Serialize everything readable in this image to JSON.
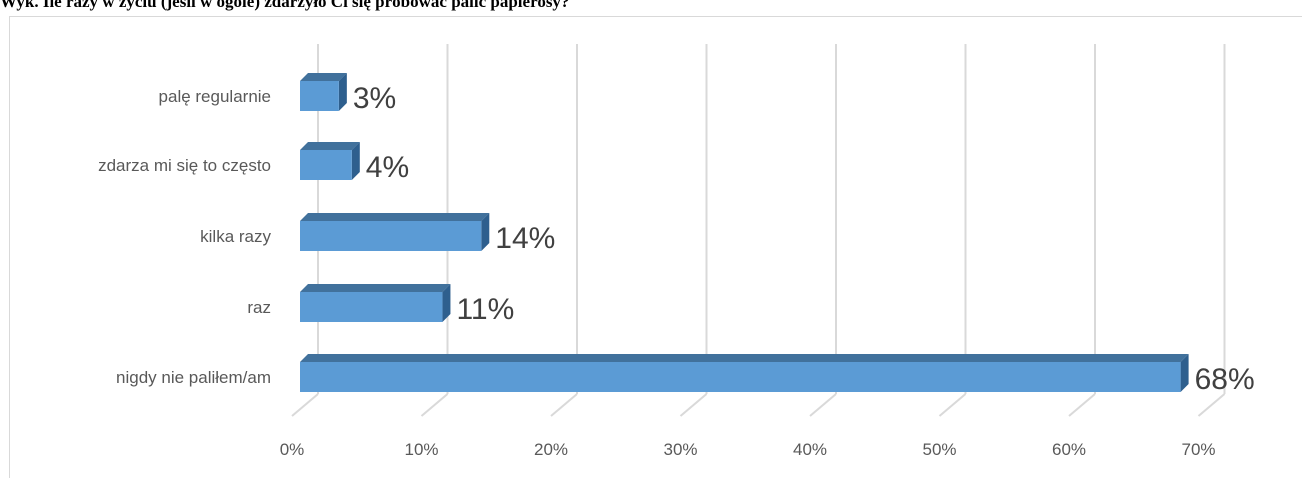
{
  "header": {
    "title": "Wyk. Ile razy w życiu (jeśli w ogóle) zdarzyło Ci się próbować palić papierosy?"
  },
  "chart_data": {
    "type": "bar",
    "orientation": "horizontal",
    "style": "3d-clustered",
    "title": "Wyk. Ile razy w życiu (jeśli w ogóle) zdarzyło Ci się próbować palić papierosy?",
    "categories": [
      "palę regularnie",
      "zdarza mi się to często",
      "kilka razy",
      "raz",
      "nigdy nie paliłem/am"
    ],
    "values": [
      3,
      4,
      14,
      11,
      68
    ],
    "value_labels": [
      "3%",
      "4%",
      "14%",
      "11%",
      "68%"
    ],
    "value_unit": "%",
    "xlim": [
      0,
      70
    ],
    "x_ticks": [
      "0%",
      "10%",
      "20%",
      "30%",
      "40%",
      "50%",
      "60%",
      "70%"
    ],
    "xlabel": "",
    "ylabel": "",
    "grid": true,
    "legend": "none",
    "colors": {
      "bar_front": "#5b9bd5",
      "bar_top": "#41719c",
      "bar_side": "#2e5f8e",
      "grid": "#d9d9d9"
    }
  }
}
